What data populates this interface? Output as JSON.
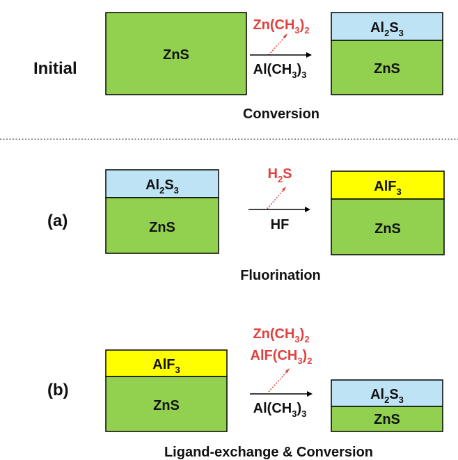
{
  "colors": {
    "zns": "#92d050",
    "al2s3": "#bde3f5",
    "alf3": "#ffff00",
    "byproduct": "#e0413d",
    "text": "#111111",
    "border": "#000000",
    "separator": "#8c8c8c"
  },
  "rows": [
    {
      "label": "Initial",
      "reactant": {
        "layers": [
          {
            "text": "ZnS",
            "sub": "",
            "tail": "",
            "material": "zns"
          }
        ]
      },
      "byproducts": [
        {
          "pre": "Zn(CH",
          "sub": "3",
          "post": ")",
          "sub2": "2"
        }
      ],
      "reagent": {
        "pre": "Al(CH",
        "sub": "3",
        "post": ")",
        "sub2": "3"
      },
      "product": {
        "layers": [
          {
            "text": "Al",
            "sub": "2",
            "tail": "S",
            "sub2": "3",
            "material": "al2s3"
          },
          {
            "text": "ZnS",
            "sub": "",
            "tail": "",
            "material": "zns"
          }
        ]
      },
      "caption": "Conversion"
    },
    {
      "label": "(a)",
      "reactant": {
        "layers": [
          {
            "text": "Al",
            "sub": "2",
            "tail": "S",
            "sub2": "3",
            "material": "al2s3"
          },
          {
            "text": "ZnS",
            "sub": "",
            "tail": "",
            "material": "zns"
          }
        ]
      },
      "byproducts": [
        {
          "pre": "H",
          "sub": "2",
          "post": "S",
          "sub2": ""
        }
      ],
      "reagent": {
        "pre": "HF",
        "sub": "",
        "post": "",
        "sub2": ""
      },
      "product": {
        "layers": [
          {
            "text": "AlF",
            "sub": "3",
            "tail": "",
            "material": "alf3"
          },
          {
            "text": "ZnS",
            "sub": "",
            "tail": "",
            "material": "zns"
          }
        ]
      },
      "caption": "Fluorination"
    },
    {
      "label": "(b)",
      "reactant": {
        "layers": [
          {
            "text": "AlF",
            "sub": "3",
            "tail": "",
            "material": "alf3"
          },
          {
            "text": "ZnS",
            "sub": "",
            "tail": "",
            "material": "zns"
          }
        ]
      },
      "byproducts": [
        {
          "pre": "Zn(CH",
          "sub": "3",
          "post": ")",
          "sub2": "2"
        },
        {
          "pre": "AlF(CH",
          "sub": "3",
          "post": ")",
          "sub2": "2"
        }
      ],
      "reagent": {
        "pre": "Al(CH",
        "sub": "3",
        "post": ")",
        "sub2": "3"
      },
      "product": {
        "layers": [
          {
            "text": "Al",
            "sub": "2",
            "tail": "S",
            "sub2": "3",
            "material": "al2s3"
          },
          {
            "text": "ZnS",
            "sub": "",
            "tail": "",
            "material": "zns"
          }
        ]
      },
      "caption": "Ligand-exchange & Conversion"
    }
  ]
}
